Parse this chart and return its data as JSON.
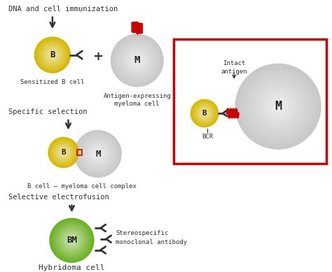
{
  "bg_color": "#ffffff",
  "yellow_color": "#d4b800",
  "yellow_green_color": "#6ab020",
  "gray_color": "#c8c8c8",
  "red_color": "#cc0000",
  "dark_color": "#333333",
  "text_color": "#333333",
  "label_dna": "DNA and cell immunization",
  "label_b": "B",
  "label_m": "M",
  "label_bm": "BM",
  "label_sensitized": "Sensitized B cell",
  "label_antigen": "Antigen-expressing\nmyeloma cell",
  "label_specific": "Specific selection",
  "label_complex": "B cell – myeloma cell complex",
  "label_electrofusion": "Selective electrofusion",
  "label_hybridoma": "Hybridoma cell",
  "label_stereo": "Stereospecific\nmonoclonal antibody",
  "label_intact": "Intact\nantigen",
  "label_bcr": "BCR"
}
